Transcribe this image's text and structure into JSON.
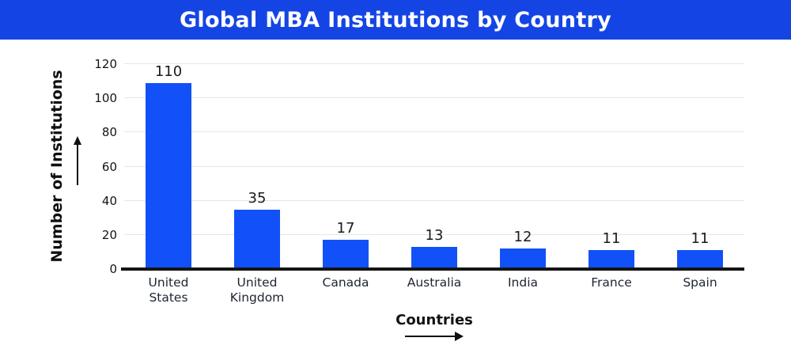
{
  "header": {
    "title": "Global MBA Institutions by Country"
  },
  "chart_data": {
    "type": "bar",
    "title": "Global MBA Institutions by Country",
    "categories": [
      "United States",
      "United Kingdom",
      "Canada",
      "Australia",
      "India",
      "France",
      "Spain"
    ],
    "values": [
      110,
      35,
      17,
      13,
      12,
      11,
      11
    ],
    "xlabel": "Countries",
    "ylabel": "Number of Institutions",
    "ylim": [
      0,
      120
    ],
    "yticks": [
      0,
      20,
      40,
      60,
      80,
      100,
      120
    ],
    "grid": true,
    "legend": false,
    "colors": {
      "header_bg": "#1445E4",
      "header_text": "#FFFFFF",
      "bar_fill": "#1151F7",
      "grid_line": "#E6E6E6",
      "axis_line": "#141414",
      "tick_text": "#141414",
      "value_text": "#1A1A1A",
      "category_text": "#1D2433"
    }
  }
}
